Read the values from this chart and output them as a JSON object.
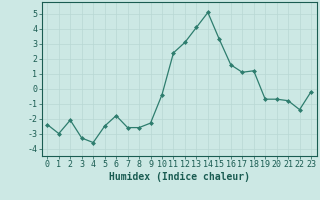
{
  "x": [
    0,
    1,
    2,
    3,
    4,
    5,
    6,
    7,
    8,
    9,
    10,
    11,
    12,
    13,
    14,
    15,
    16,
    17,
    18,
    19,
    20,
    21,
    22,
    23
  ],
  "y": [
    -2.4,
    -3.0,
    -2.1,
    -3.3,
    -3.6,
    -2.5,
    -1.8,
    -2.6,
    -2.6,
    -2.3,
    -0.4,
    2.4,
    3.1,
    4.1,
    5.1,
    3.3,
    1.6,
    1.1,
    1.2,
    -0.7,
    -0.7,
    -0.8,
    -1.4,
    -0.2
  ],
  "line_color": "#2e7d6e",
  "marker": "D",
  "marker_size": 2.0,
  "bg_color": "#cce8e4",
  "grid_color": "#b8d8d4",
  "tick_color": "#1a5c52",
  "xlabel": "Humidex (Indice chaleur)",
  "ylim": [
    -4.5,
    5.8
  ],
  "yticks": [
    -4,
    -3,
    -2,
    -1,
    0,
    1,
    2,
    3,
    4,
    5
  ],
  "label_fontsize": 7.0,
  "tick_fontsize": 6.0
}
